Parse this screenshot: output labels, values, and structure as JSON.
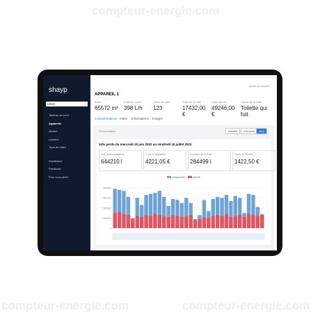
{
  "watermark": "compteur-energie.com",
  "sidebar": {
    "logo": "shayp",
    "search": "USER",
    "menu": [
      "Tableau de bord",
      "Appareils",
      "Alertes",
      "Leaders",
      "Type de fuites",
      "Installateur",
      "Feedback",
      "Pour vous aider"
    ]
  },
  "header": {
    "account": "Accès au compte",
    "title": "APPAREIL 1"
  },
  "stats": [
    {
      "label": "Index",
      "value": "65572 m³"
    },
    {
      "label": "Fuite en cours",
      "value": "398 L/h"
    },
    {
      "label": "Jours de fuite",
      "value": "123"
    },
    {
      "label": "Coût de la fuite",
      "value": "17432,00 €"
    },
    {
      "label": "Coût annuel",
      "value": "49246,00 €"
    },
    {
      "label": "Cause de la fuite",
      "value": "Toilette qui fuit"
    }
  ],
  "tabs": [
    "Consommations",
    "Index",
    "Informations",
    "Images"
  ],
  "toolbar": {
    "customize": "Personnaliser",
    "buttons": [
      "Détaillé",
      "Compact",
      "Jour"
    ]
  },
  "panel": {
    "title": "34% perdu du mercredi 15 juin 2022 au vendredi 15 juillet 2022",
    "cards": [
      {
        "label": "Vol. consommation",
        "value": "644210 l"
      },
      {
        "label": "Coût d'utilisation",
        "value": "4221,05 €"
      },
      {
        "label": "Volume de la fuite",
        "value": "284499 l"
      },
      {
        "label": "Coût de la fuite",
        "value": "1422,50 €"
      }
    ]
  },
  "chart_data": {
    "type": "bar",
    "ylim": [
      0,
      400000
    ],
    "yticks": [
      0,
      100000,
      200000,
      300000,
      400000
    ],
    "grid": true,
    "series": [
      {
        "name": "consommée",
        "color": "#6fa3d8",
        "values": [
          390000,
          380000,
          370000,
          310000,
          100000,
          300000,
          230000,
          330000,
          340000,
          350000,
          370000,
          310000,
          220000,
          290000,
          280000,
          250000,
          300000,
          250000,
          90000,
          130000,
          280000,
          170000,
          290000,
          310000,
          300000,
          330000,
          270000,
          320000,
          300000,
          150000,
          340000,
          330000,
          210000,
          140000
        ]
      },
      {
        "name": "perdue",
        "color": "#e0555f",
        "values": [
          150000,
          160000,
          140000,
          130000,
          90000,
          120000,
          110000,
          130000,
          120000,
          140000,
          130000,
          120000,
          110000,
          130000,
          120000,
          110000,
          120000,
          130000,
          80000,
          90000,
          110000,
          100000,
          120000,
          130000,
          120000,
          140000,
          110000,
          120000,
          130000,
          110000,
          140000,
          130000,
          120000,
          130000
        ]
      }
    ]
  }
}
